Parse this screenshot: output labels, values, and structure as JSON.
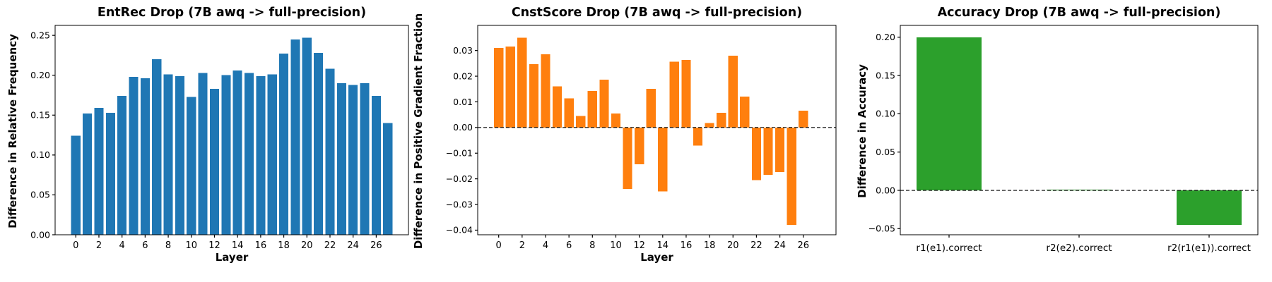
{
  "figure": {
    "background": "#ffffff",
    "blue": "#1f77b4",
    "orange": "#ff7f0e",
    "green": "#2ca02c"
  },
  "chart_data": [
    {
      "type": "bar",
      "title": "EntRec Drop (7B awq -> full-precision)",
      "xlabel": "Layer",
      "ylabel": "Difference in Relative Frequency",
      "bar_color": "#1f77b4",
      "categories": [
        0,
        1,
        2,
        3,
        4,
        5,
        6,
        7,
        8,
        9,
        10,
        11,
        12,
        13,
        14,
        15,
        16,
        17,
        18,
        19,
        20,
        21,
        22,
        23,
        24,
        25,
        26,
        27
      ],
      "values": [
        0.124,
        0.152,
        0.159,
        0.153,
        0.174,
        0.198,
        0.196,
        0.22,
        0.201,
        0.199,
        0.173,
        0.203,
        0.183,
        0.2,
        0.206,
        0.203,
        0.199,
        0.201,
        0.227,
        0.245,
        0.247,
        0.228,
        0.208,
        0.19,
        0.188,
        0.19,
        0.174,
        0.14
      ],
      "xtick_values": [
        0,
        2,
        4,
        6,
        8,
        10,
        12,
        14,
        16,
        18,
        20,
        22,
        24,
        26
      ],
      "xtick_labels": [
        "0",
        "2",
        "4",
        "6",
        "8",
        "10",
        "12",
        "14",
        "16",
        "18",
        "20",
        "22",
        "24",
        "26"
      ],
      "ytick_values": [
        0.0,
        0.05,
        0.1,
        0.15,
        0.2,
        0.25
      ],
      "ytick_labels": [
        "0.00",
        "0.05",
        "0.10",
        "0.15",
        "0.20",
        "0.25"
      ],
      "xlim": [
        -1.79,
        28.79
      ],
      "ylim": [
        0,
        0.2625
      ],
      "bar_width": 0.8,
      "zero_line_dashed": true,
      "grid": false,
      "legend": null
    },
    {
      "type": "bar",
      "title": "CnstScore Drop (7B awq -> full-precision)",
      "xlabel": "Layer",
      "ylabel": "Difference in Positive Gradient Fraction",
      "bar_color": "#ff7f0e",
      "categories": [
        0,
        1,
        2,
        3,
        4,
        5,
        6,
        7,
        8,
        9,
        10,
        11,
        12,
        13,
        14,
        15,
        16,
        17,
        18,
        19,
        20,
        21,
        22,
        23,
        24,
        25,
        26,
        27
      ],
      "values": [
        0.031,
        0.0315,
        0.035,
        0.0247,
        0.0285,
        0.016,
        0.0113,
        0.0045,
        0.0142,
        0.0187,
        0.0055,
        -0.024,
        -0.0143,
        0.0151,
        -0.0249,
        0.0256,
        0.0263,
        -0.007,
        0.0017,
        0.0058,
        0.028,
        0.012,
        -0.0205,
        -0.0185,
        -0.0174,
        -0.038,
        0.0065,
        0.0
      ],
      "xtick_values": [
        0,
        2,
        4,
        6,
        8,
        10,
        12,
        14,
        16,
        18,
        20,
        22,
        24,
        26
      ],
      "xtick_labels": [
        "0",
        "2",
        "4",
        "6",
        "8",
        "10",
        "12",
        "14",
        "16",
        "18",
        "20",
        "22",
        "24",
        "26"
      ],
      "ytick_values": [
        0.03,
        0.02,
        0.01,
        0.0,
        -0.01,
        -0.02,
        -0.03,
        -0.04
      ],
      "ytick_labels": [
        "0.03",
        "0.02",
        "0.01",
        "0.00",
        "−0.01",
        "−0.02",
        "−0.03",
        "−0.04"
      ],
      "xlim": [
        -1.79,
        28.79
      ],
      "ylim": [
        -0.0418,
        0.0398
      ],
      "bar_width": 0.8,
      "zero_line_dashed": true,
      "grid": false,
      "legend": null
    },
    {
      "type": "bar",
      "title": "Accuracy Drop (7B awq -> full-precision)",
      "xlabel": "",
      "ylabel": "Difference in Accuracy",
      "bar_color": "#2ca02c",
      "categories": [
        "r1(e1).correct",
        "r2(e2).correct",
        "r2(r1(e1)).correct"
      ],
      "values": [
        0.2,
        0.001,
        -0.045
      ],
      "xtick_values": [
        0,
        1,
        2
      ],
      "xtick_labels": [
        "r1(e1).correct",
        "r2(e2).correct",
        "r2(r1(e1)).correct"
      ],
      "ytick_values": [
        0.2,
        0.15,
        0.1,
        0.05,
        0.0,
        -0.05
      ],
      "ytick_labels": [
        "0.20",
        "0.15",
        "0.10",
        "0.05",
        "0.00",
        "−0.05"
      ],
      "xlim": [
        -0.375,
        2.375
      ],
      "ylim": [
        -0.058,
        0.2155
      ],
      "bar_width": 0.5,
      "zero_line_dashed": true,
      "grid": false,
      "legend": null
    }
  ]
}
